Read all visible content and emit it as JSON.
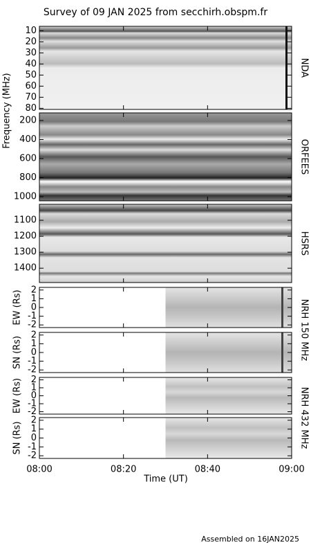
{
  "title": "Survey of 09 JAN 2025 from secchirh.obspm.fr",
  "footer": "Assembled on 16JAN2025",
  "frequency_label": "Frequency (MHz)",
  "x_axis": {
    "label": "Time (UT)",
    "xlim": [
      "08:00",
      "09:00"
    ],
    "xticks": [
      "08:00",
      "08:20",
      "08:40",
      "09:00"
    ]
  },
  "chart_data": [
    {
      "type": "spectrogram",
      "instrument": "NDA",
      "ylim": [
        6,
        81
      ],
      "y_inverted": true,
      "yticks": [
        10,
        20,
        30,
        40,
        50,
        60,
        70,
        80
      ]
    },
    {
      "type": "spectrogram",
      "instrument": "ORFEES",
      "ylim": [
        120,
        1044
      ],
      "y_inverted": true,
      "yticks": [
        200,
        400,
        600,
        800,
        1000
      ]
    },
    {
      "type": "spectrogram",
      "instrument": "HSRS",
      "ylim": [
        1000,
        1490
      ],
      "y_inverted": true,
      "yticks": [
        1100,
        1200,
        1300,
        1400
      ]
    },
    {
      "type": "spectrogram",
      "instrument": "NRH 150 MHz",
      "ylabel": "EW (Rs)",
      "ylim": [
        -2.3,
        2.3
      ],
      "yticks": [
        -2,
        -1,
        0,
        1,
        2
      ],
      "data_xlim": [
        "08:30",
        "09:00"
      ]
    },
    {
      "type": "spectrogram",
      "ylabel": "SN (Rs)",
      "ylim": [
        -2.3,
        2.3
      ],
      "yticks": [
        -2,
        -1,
        0,
        1,
        2
      ],
      "data_xlim": [
        "08:30",
        "09:00"
      ]
    },
    {
      "type": "spectrogram",
      "instrument": "NRH 432 MHz",
      "ylabel": "EW (Rs)",
      "ylim": [
        -2.3,
        2.3
      ],
      "yticks": [
        -2,
        -1,
        0,
        1,
        2
      ],
      "data_xlim": [
        "08:30",
        "09:00"
      ]
    },
    {
      "type": "spectrogram",
      "ylabel": "SN (Rs)",
      "ylim": [
        -2.3,
        2.3
      ],
      "yticks": [
        -2,
        -1,
        0,
        1,
        2
      ],
      "data_xlim": [
        "08:30",
        "09:00"
      ]
    }
  ]
}
